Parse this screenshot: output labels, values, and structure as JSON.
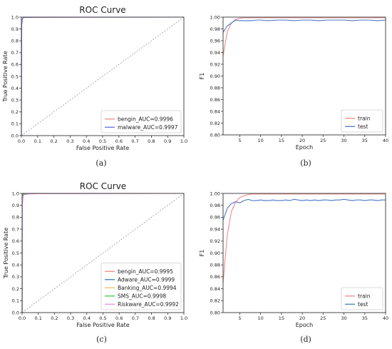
{
  "chart_data": [
    {
      "type": "line",
      "title": "ROC Curve",
      "xlabel": "False Positive Rate",
      "ylabel": "True Positive Rate",
      "xlim": [
        0,
        1.0
      ],
      "ylim": [
        0,
        1.0
      ],
      "xticks": [
        "0.0",
        "0.1",
        "0.2",
        "0.3",
        "0.4",
        "0.5",
        "0.6",
        "0.7",
        "0.8",
        "0.9",
        "1.0"
      ],
      "yticks": [
        "0.0",
        "0.1",
        "0.2",
        "0.3",
        "0.4",
        "0.5",
        "0.6",
        "0.7",
        "0.8",
        "0.9",
        "1.0"
      ],
      "diagonal": true,
      "grid": false,
      "legend_position": "lower-right",
      "caption": "(a)",
      "series": [
        {
          "name": "bengin_AUC=0.9996",
          "color": "#f08a8a",
          "x": [
            0,
            0.002,
            0.006,
            0.012,
            0.03,
            0.1,
            1.0
          ],
          "y": [
            0,
            0.93,
            0.985,
            0.995,
            0.998,
            0.999,
            1.0
          ]
        },
        {
          "name": "malware_AUC=0.9997",
          "color": "#6b6bdd",
          "x": [
            0,
            0.002,
            0.006,
            0.012,
            0.03,
            0.1,
            1.0
          ],
          "y": [
            0,
            0.94,
            0.988,
            0.996,
            0.998,
            0.999,
            1.0
          ]
        }
      ]
    },
    {
      "type": "line",
      "title": "",
      "xlabel": "Epoch",
      "ylabel": "F1",
      "xlim": [
        1,
        40
      ],
      "ylim": [
        0.8,
        1.0
      ],
      "xticks": [
        "5",
        "10",
        "15",
        "20",
        "25",
        "30",
        "35",
        "40"
      ],
      "yticks": [
        "0.80",
        "0.82",
        "0.84",
        "0.86",
        "0.88",
        "0.90",
        "0.92",
        "0.94",
        "0.96",
        "0.98",
        "1.00"
      ],
      "grid": false,
      "legend_position": "lower-right",
      "caption": "(b)",
      "series": [
        {
          "name": "train",
          "color": "#f08a8a",
          "x": [
            1,
            2,
            3,
            4,
            5,
            6,
            8,
            10,
            15,
            20,
            25,
            30,
            35,
            40
          ],
          "y": [
            0.934,
            0.975,
            0.99,
            0.996,
            0.998,
            0.999,
            0.999,
            0.999,
            0.999,
            0.999,
            0.999,
            0.999,
            0.999,
            0.999
          ]
        },
        {
          "name": "test",
          "color": "#4a78c8",
          "x": [
            1,
            2,
            3,
            4,
            5,
            6,
            7,
            8,
            9,
            10,
            12,
            14,
            16,
            18,
            20,
            22,
            24,
            26,
            28,
            30,
            32,
            34,
            36,
            38,
            40
          ],
          "y": [
            0.974,
            0.985,
            0.99,
            0.995,
            0.994,
            0.994,
            0.994,
            0.994,
            0.995,
            0.995,
            0.994,
            0.995,
            0.995,
            0.994,
            0.995,
            0.995,
            0.994,
            0.995,
            0.995,
            0.995,
            0.994,
            0.995,
            0.995,
            0.994,
            0.995
          ]
        }
      ]
    },
    {
      "type": "line",
      "title": "ROC Curve",
      "xlabel": "False Positive Rate",
      "ylabel": "True Positive Rate",
      "xlim": [
        0,
        1.0
      ],
      "ylim": [
        0,
        1.0
      ],
      "xticks": [
        "0.0",
        "0.1",
        "0.2",
        "0.3",
        "0.4",
        "0.5",
        "0.6",
        "0.7",
        "0.8",
        "0.9",
        "1.0"
      ],
      "yticks": [
        "0.0",
        "0.1",
        "0.2",
        "0.3",
        "0.4",
        "0.5",
        "0.6",
        "0.7",
        "0.8",
        "0.9",
        "1.0"
      ],
      "diagonal": true,
      "grid": false,
      "legend_position": "lower-right",
      "caption": "(c)",
      "series": [
        {
          "name": "bengin_AUC=0.9995",
          "color": "#f08a8a",
          "x": [
            0,
            0.002,
            0.006,
            0.015,
            0.04,
            0.1,
            1.0
          ],
          "y": [
            0,
            0.93,
            0.985,
            0.994,
            0.997,
            0.999,
            1.0
          ]
        },
        {
          "name": "Adware_AUC=0.9999",
          "color": "#3a7fc0",
          "x": [
            0,
            0.002,
            0.006,
            0.015,
            0.04,
            0.1,
            1.0
          ],
          "y": [
            0,
            0.97,
            0.995,
            0.998,
            0.999,
            1.0,
            1.0
          ]
        },
        {
          "name": "Banking_AUC=0.9994",
          "color": "#e8c070",
          "x": [
            0,
            0.002,
            0.006,
            0.015,
            0.04,
            0.1,
            1.0
          ],
          "y": [
            0,
            0.92,
            0.982,
            0.993,
            0.997,
            0.999,
            1.0
          ]
        },
        {
          "name": "SMS_AUC=0.9998",
          "color": "#3cc83c",
          "x": [
            0,
            0.002,
            0.006,
            0.015,
            0.04,
            0.1,
            1.0
          ],
          "y": [
            0,
            0.96,
            0.992,
            0.997,
            0.999,
            1.0,
            1.0
          ]
        },
        {
          "name": "Riskware_AUC=0.9992",
          "color": "#e090e0",
          "x": [
            0,
            0.002,
            0.006,
            0.015,
            0.04,
            0.1,
            1.0
          ],
          "y": [
            0,
            0.91,
            0.978,
            0.99,
            0.995,
            0.998,
            1.0
          ]
        }
      ]
    },
    {
      "type": "line",
      "title": "",
      "xlabel": "Epoch",
      "ylabel": "F1",
      "xlim": [
        1,
        40
      ],
      "ylim": [
        0.8,
        1.0
      ],
      "xticks": [
        "5",
        "10",
        "15",
        "20",
        "25",
        "30",
        "35",
        "40"
      ],
      "yticks": [
        "0.80",
        "0.82",
        "0.84",
        "0.86",
        "0.88",
        "0.90",
        "0.92",
        "0.94",
        "0.96",
        "0.98",
        "1.00"
      ],
      "grid": false,
      "legend_position": "lower-right",
      "caption": "(d)",
      "series": [
        {
          "name": "train",
          "color": "#f08a8a",
          "x": [
            1,
            2,
            3,
            4,
            5,
            6,
            7,
            8,
            10,
            15,
            20,
            25,
            30,
            35,
            40
          ],
          "y": [
            0.85,
            0.93,
            0.97,
            0.985,
            0.993,
            0.996,
            0.998,
            0.999,
            0.999,
            0.999,
            0.999,
            0.999,
            0.999,
            0.999,
            0.999
          ]
        },
        {
          "name": "test",
          "color": "#4a78c8",
          "x": [
            1,
            2,
            3,
            4,
            5,
            6,
            7,
            8,
            9,
            10,
            11,
            12,
            13,
            14,
            15,
            16,
            17,
            18,
            19,
            20,
            21,
            22,
            23,
            24,
            25,
            26,
            27,
            28,
            29,
            30,
            31,
            32,
            33,
            34,
            35,
            36,
            37,
            38,
            39,
            40
          ],
          "y": [
            0.955,
            0.975,
            0.983,
            0.986,
            0.984,
            0.988,
            0.99,
            0.988,
            0.988,
            0.989,
            0.988,
            0.988,
            0.989,
            0.988,
            0.988,
            0.989,
            0.988,
            0.99,
            0.989,
            0.988,
            0.989,
            0.988,
            0.989,
            0.988,
            0.989,
            0.989,
            0.988,
            0.989,
            0.989,
            0.99,
            0.989,
            0.988,
            0.989,
            0.989,
            0.988,
            0.989,
            0.989,
            0.988,
            0.989,
            0.989
          ]
        }
      ]
    }
  ]
}
